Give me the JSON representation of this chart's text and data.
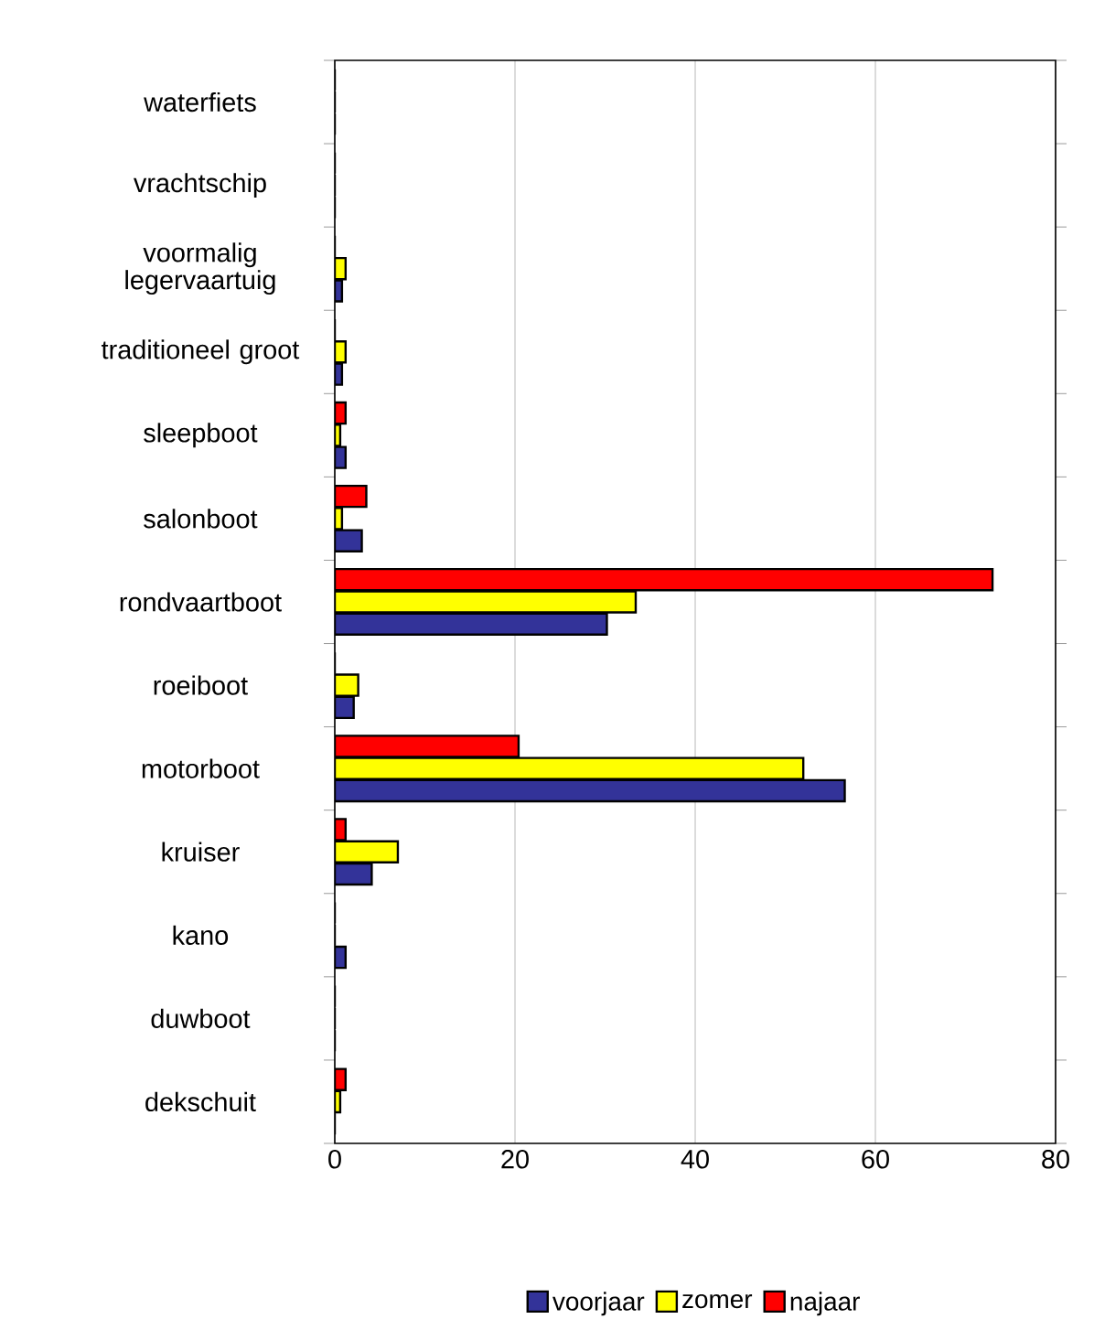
{
  "chart_data": {
    "type": "bar",
    "orientation": "horizontal",
    "categories": [
      "waterfiets",
      "vrachtschip",
      "voormalig legervaartuig",
      "traditioneel groot",
      "sleepboot",
      "salonboot",
      "rondvaartboot",
      "roeiboot",
      "motorboot",
      "kruiser",
      "kano",
      "duwboot",
      "dekschuit"
    ],
    "series": [
      {
        "name": "voorjaar",
        "color": "#333399",
        "values": [
          0,
          0,
          0.8,
          0.8,
          1.2,
          3,
          30.2,
          2.1,
          56.6,
          4.1,
          1.2,
          0,
          0
        ]
      },
      {
        "name": "zomer",
        "color": "#ffff00",
        "values": [
          0,
          0,
          1.2,
          1.2,
          0.6,
          0.8,
          33.4,
          2.6,
          52,
          7,
          0,
          0,
          0.6
        ]
      },
      {
        "name": "najaar",
        "color": "#ff0000",
        "values": [
          0,
          0,
          0,
          0,
          1.2,
          3.5,
          73,
          0,
          20.4,
          1.2,
          0,
          0,
          1.2
        ]
      }
    ],
    "xlim": [
      0,
      80
    ],
    "xticks": [
      0,
      20,
      40,
      60,
      80
    ],
    "grid": "x",
    "legend": "bottom"
  }
}
